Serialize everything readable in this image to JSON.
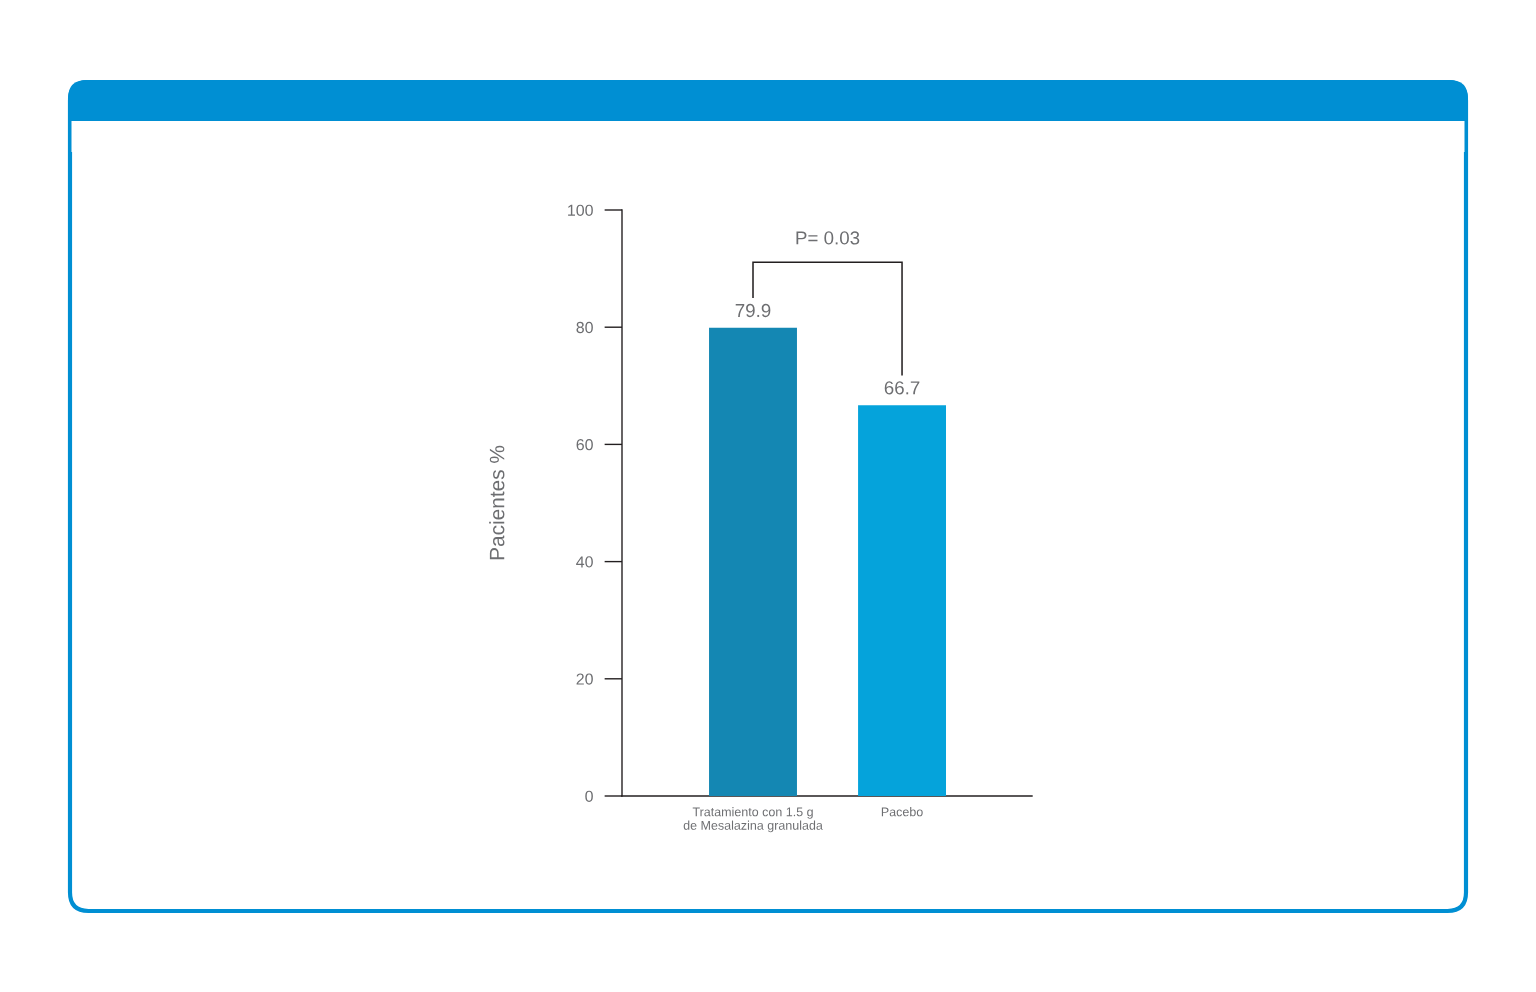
{
  "chart_data": {
    "type": "bar",
    "ylabel": "Pacientes %",
    "categories": [
      "Tratamiento con 1.5 g\nde Mesalazina granulada",
      "Pacebo"
    ],
    "values": [
      79.9,
      66.7
    ],
    "colors": [
      "#1487b3",
      "#05a3db"
    ],
    "ylim": [
      0,
      100
    ],
    "yticks": [
      0,
      20,
      40,
      60,
      80,
      100
    ],
    "grid": false,
    "data_labels": true,
    "annotations": [
      "P= 0.03"
    ]
  }
}
